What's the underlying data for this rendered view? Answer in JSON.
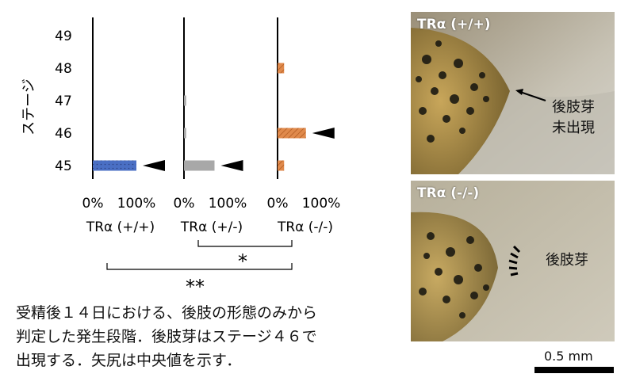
{
  "chart_data": {
    "type": "bar",
    "ylabel": "ステージ",
    "stages": [
      "49",
      "48",
      "47",
      "46",
      "45"
    ],
    "x_ticks": [
      "0%",
      "100%"
    ],
    "panels": [
      {
        "name": "TRα (+/+)",
        "color": "#4a6fc4",
        "pattern": "dots",
        "values": {
          "49": 0,
          "48": 0,
          "47": 0,
          "46": 0,
          "45": 100
        },
        "median": "45"
      },
      {
        "name": "TRα (+/-)",
        "color": "#a8a8a8",
        "pattern": "solid",
        "values": {
          "49": 0,
          "48": 0,
          "47": 5,
          "46": 5,
          "45": 70
        },
        "median": "45"
      },
      {
        "name": "TRα (-/-)",
        "color": "#e08a4c",
        "pattern": "stripes",
        "values": {
          "49": 0,
          "48": 15,
          "47": 0,
          "46": 65,
          "45": 15
        },
        "median": "46"
      }
    ],
    "significance": [
      {
        "between": [
          "TRα (+/-)",
          "TRα (-/-)"
        ],
        "mark": "*"
      },
      {
        "between": [
          "TRα (+/+)",
          "TRα (-/-)"
        ],
        "mark": "**"
      }
    ]
  },
  "caption": [
    "受精後１４日における、後肢の形態のみから",
    "判定した発生段階．後肢芽はステージ４６で",
    "出現する．矢尻は中央値を示す．"
  ],
  "photos": {
    "top": {
      "label": "TRα (+/+)",
      "note_line1": "後肢芽",
      "note_line2": "未出現"
    },
    "bottom": {
      "label": "TRα (-/-)",
      "note": "後肢芽"
    }
  },
  "scale_bar": {
    "label": "0.5 mm"
  }
}
